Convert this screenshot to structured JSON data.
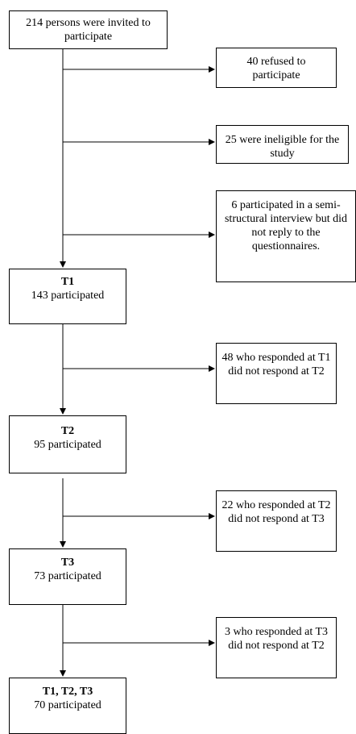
{
  "main": {
    "start": "214 persons were invited to participate",
    "t1_label": "T1",
    "t1_text": "143 participated",
    "t2_label": "T2",
    "t2_text": "95 participated",
    "t3_label": "T3",
    "t3_text": "73 participated",
    "final_label": "T1, T2, T3",
    "final_text": "70 participated"
  },
  "exclusions": {
    "refused": "40 refused to participate",
    "ineligible": "25 were ineligible for the study",
    "interview_only": "6 participated in a semi-structural interview but did not reply to the questionnaires.",
    "t1_to_t2": "48 who responded at T1 did not respond at T2",
    "t2_to_t3": "22 who responded at T2 did not respond at T3",
    "t3_dropout": "3 who responded at T3 did not respond at T2"
  }
}
